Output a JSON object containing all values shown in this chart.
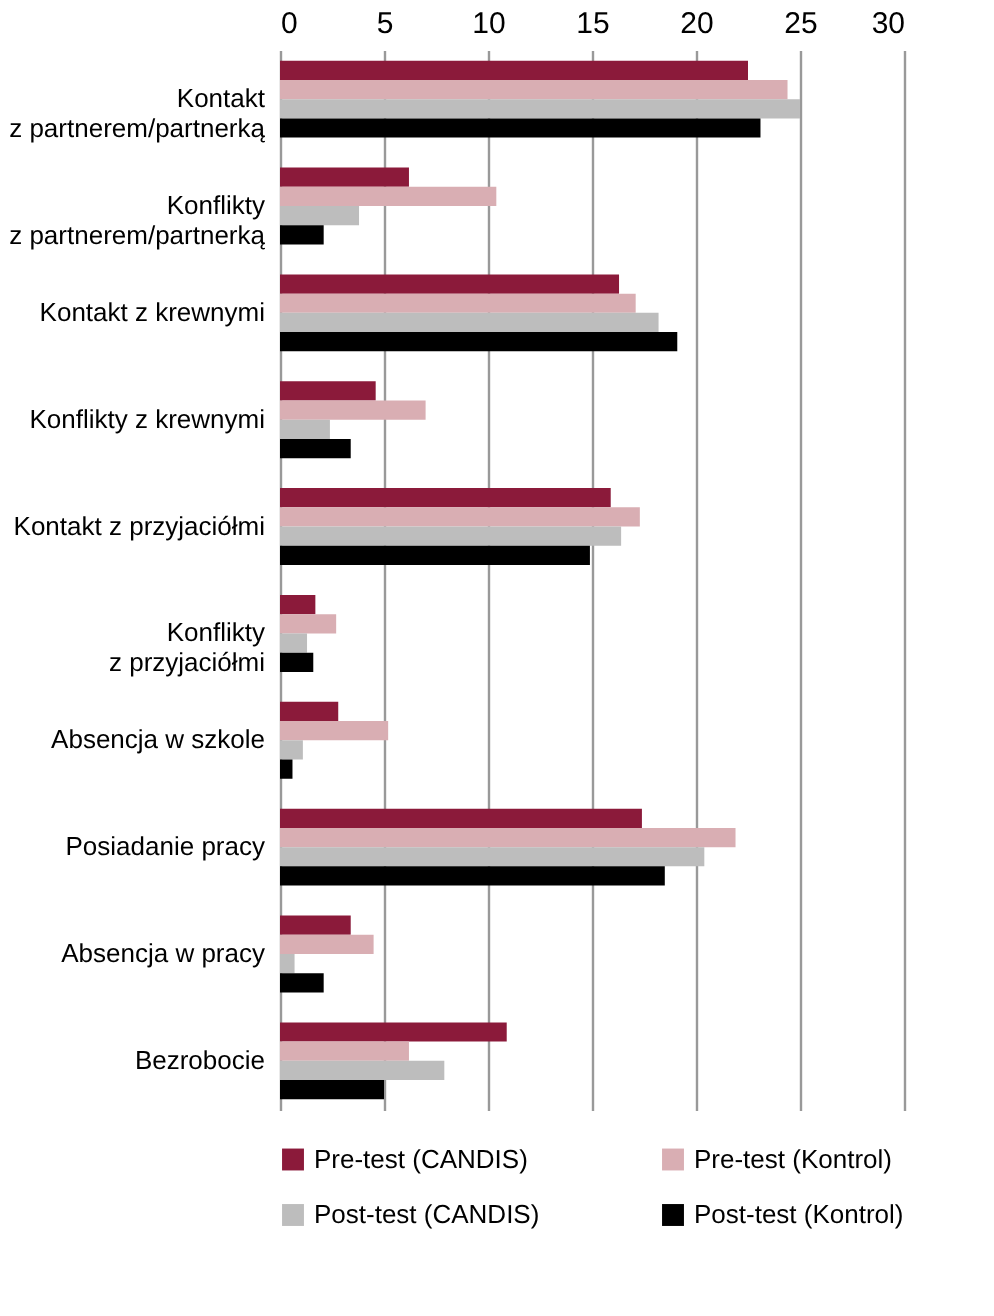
{
  "chart_data": {
    "type": "bar",
    "orientation": "horizontal",
    "categories": [
      "Kontakt z partnerem/partnerką",
      "Konflikty z partnerem/partnerką",
      "Kontakt z krewnymi",
      "Konflikty z krewnymi",
      "Kontakt z przyjaciółmi",
      "Konflikty z przyjaciółmi",
      "Absencja w szkole",
      "Posiadanie pracy",
      "Absencja w pracy",
      "Bezrobocie"
    ],
    "series": [
      {
        "name": "Pre-test (CANDIS)",
        "color": "#8b1a3a",
        "values": [
          22.5,
          6.2,
          16.3,
          4.6,
          15.9,
          1.7,
          2.8,
          17.4,
          3.4,
          10.9
        ]
      },
      {
        "name": "Pre-test (Kontrol)",
        "color": "#d9aeb3",
        "values": [
          24.4,
          10.4,
          17.1,
          7.0,
          17.3,
          2.7,
          5.2,
          21.9,
          4.5,
          6.2
        ]
      },
      {
        "name": "Post-test (CANDIS)",
        "color": "#bdbdbd",
        "values": [
          25.0,
          3.8,
          18.2,
          2.4,
          16.4,
          1.3,
          1.1,
          20.4,
          0.7,
          7.9
        ]
      },
      {
        "name": "Post-test (Kontrol)",
        "color": "#000000",
        "values": [
          23.1,
          2.1,
          19.1,
          3.4,
          14.9,
          1.6,
          0.6,
          18.5,
          2.1,
          5.0
        ]
      }
    ],
    "xlim": [
      0,
      30
    ],
    "xticks": [
      0,
      5,
      10,
      15,
      20,
      25,
      30
    ],
    "grid": "x",
    "legend": "bottom"
  }
}
